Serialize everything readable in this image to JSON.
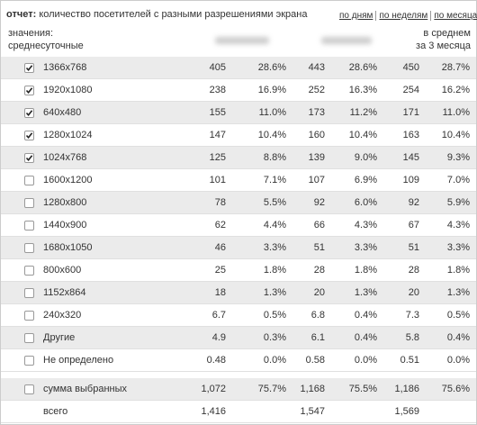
{
  "header": {
    "title_prefix": "отчет:",
    "title": "количество посетителей с разными разрешениями экрана",
    "links": [
      "по дням",
      "по неделям",
      "по месяцам"
    ]
  },
  "columns": {
    "left": [
      "значения:",
      "среднесуточные"
    ],
    "right": [
      "в среднем",
      "за 3 месяца"
    ]
  },
  "table": {
    "rows": [
      {
        "label": "1366x768",
        "checked": true,
        "cells": [
          "405",
          "28.6%",
          "443",
          "28.6%",
          "450",
          "28.7%"
        ]
      },
      {
        "label": "1920x1080",
        "checked": true,
        "cells": [
          "238",
          "16.9%",
          "252",
          "16.3%",
          "254",
          "16.2%"
        ]
      },
      {
        "label": "640x480",
        "checked": true,
        "cells": [
          "155",
          "11.0%",
          "173",
          "11.2%",
          "171",
          "11.0%"
        ]
      },
      {
        "label": "1280x1024",
        "checked": true,
        "cells": [
          "147",
          "10.4%",
          "160",
          "10.4%",
          "163",
          "10.4%"
        ]
      },
      {
        "label": "1024x768",
        "checked": true,
        "cells": [
          "125",
          "8.8%",
          "139",
          "9.0%",
          "145",
          "9.3%"
        ]
      },
      {
        "label": "1600x1200",
        "checked": false,
        "cells": [
          "101",
          "7.1%",
          "107",
          "6.9%",
          "109",
          "7.0%"
        ]
      },
      {
        "label": "1280x800",
        "checked": false,
        "cells": [
          "78",
          "5.5%",
          "92",
          "6.0%",
          "92",
          "5.9%"
        ]
      },
      {
        "label": "1440x900",
        "checked": false,
        "cells": [
          "62",
          "4.4%",
          "66",
          "4.3%",
          "67",
          "4.3%"
        ]
      },
      {
        "label": "1680x1050",
        "checked": false,
        "cells": [
          "46",
          "3.3%",
          "51",
          "3.3%",
          "51",
          "3.3%"
        ]
      },
      {
        "label": "800x600",
        "checked": false,
        "cells": [
          "25",
          "1.8%",
          "28",
          "1.8%",
          "28",
          "1.8%"
        ]
      },
      {
        "label": "1152x864",
        "checked": false,
        "cells": [
          "18",
          "1.3%",
          "20",
          "1.3%",
          "20",
          "1.3%"
        ]
      },
      {
        "label": "240x320",
        "checked": false,
        "cells": [
          "6.7",
          "0.5%",
          "6.8",
          "0.4%",
          "7.3",
          "0.5%"
        ]
      },
      {
        "label": "Другие",
        "checked": false,
        "cells": [
          "4.9",
          "0.3%",
          "6.1",
          "0.4%",
          "5.8",
          "0.4%"
        ]
      },
      {
        "label": "Не определено",
        "checked": false,
        "cells": [
          "0.48",
          "0.0%",
          "0.58",
          "0.0%",
          "0.51",
          "0.0%"
        ]
      }
    ],
    "selected_sum": {
      "label": "сумма выбранных",
      "checked": false,
      "cells": [
        "1,072",
        "75.7%",
        "1,168",
        "75.5%",
        "1,186",
        "75.6%"
      ]
    },
    "total": {
      "label": "всего",
      "cells": [
        "1,416",
        "1,547",
        "1,569"
      ]
    }
  }
}
